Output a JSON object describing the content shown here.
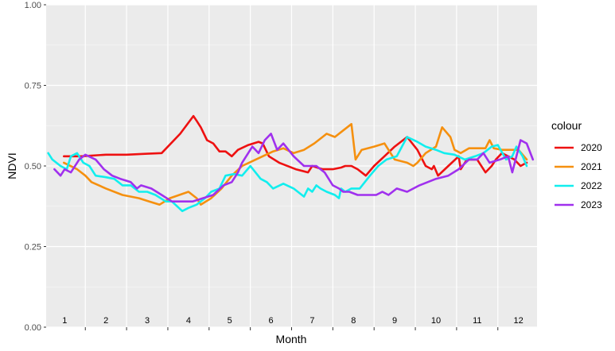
{
  "chart_data": {
    "type": "line",
    "xlabel": "Month",
    "ylabel": "NDVI",
    "ylim": [
      0,
      1
    ],
    "y_ticks": [
      "0.00",
      "0.25",
      "0.50",
      "0.75",
      "1.00"
    ],
    "y_tick_values": [
      0,
      0.25,
      0.5,
      0.75,
      1.0
    ],
    "month_labels": [
      "1",
      "2",
      "3",
      "4",
      "5",
      "6",
      "7",
      "8",
      "9",
      "10",
      "11",
      "12"
    ],
    "xlim": [
      0.55,
      12.45
    ],
    "grid": true,
    "legend": {
      "title": "colour",
      "position": "right"
    },
    "series": [
      {
        "name": "2020",
        "color": "#ee1111",
        "x": [
          0.98,
          1.4,
          2.0,
          2.5,
          3.0,
          3.35,
          3.8,
          4.12,
          4.2,
          4.3,
          4.45,
          4.6,
          4.75,
          4.9,
          5.05,
          5.2,
          5.45,
          5.7,
          5.8,
          5.95,
          6.2,
          6.6,
          6.9,
          7.0,
          7.25,
          7.5,
          7.7,
          7.8,
          7.95,
          8.1,
          8.3,
          8.5,
          8.75,
          9.0,
          9.3,
          9.55,
          9.75,
          9.9,
          9.95,
          10.05,
          10.3,
          10.55,
          10.6,
          10.75,
          11.0,
          11.2,
          11.35,
          11.45,
          11.6,
          11.75,
          11.9,
          12.05,
          12.2
        ],
        "y": [
          0.53,
          0.53,
          0.535,
          0.535,
          0.538,
          0.54,
          0.6,
          0.655,
          0.64,
          0.62,
          0.58,
          0.57,
          0.545,
          0.545,
          0.53,
          0.55,
          0.565,
          0.575,
          0.57,
          0.53,
          0.51,
          0.49,
          0.48,
          0.5,
          0.49,
          0.49,
          0.495,
          0.5,
          0.5,
          0.49,
          0.47,
          0.5,
          0.53,
          0.56,
          0.59,
          0.55,
          0.5,
          0.49,
          0.5,
          0.47,
          0.5,
          0.53,
          0.49,
          0.52,
          0.52,
          0.48,
          0.5,
          0.52,
          0.54,
          0.53,
          0.52,
          0.5,
          0.51
        ]
      },
      {
        "name": "2021",
        "color": "#f5900f",
        "x": [
          0.98,
          1.3,
          1.5,
          1.65,
          2.0,
          2.4,
          2.8,
          3.05,
          3.3,
          3.55,
          4.0,
          4.2,
          4.3,
          4.55,
          4.8,
          5.05,
          5.3,
          5.55,
          5.8,
          6.05,
          6.3,
          6.55,
          6.8,
          7.05,
          7.25,
          7.35,
          7.55,
          7.75,
          7.95,
          8.05,
          8.2,
          8.5,
          8.75,
          9.0,
          9.3,
          9.45,
          9.55,
          9.75,
          10.0,
          10.15,
          10.35,
          10.45,
          10.6,
          10.8,
          11.05,
          11.2,
          11.3,
          11.4,
          11.6,
          11.8,
          12.0,
          12.2
        ],
        "y": [
          0.51,
          0.49,
          0.47,
          0.45,
          0.43,
          0.41,
          0.4,
          0.39,
          0.38,
          0.4,
          0.42,
          0.4,
          0.38,
          0.4,
          0.43,
          0.47,
          0.5,
          0.515,
          0.53,
          0.545,
          0.555,
          0.54,
          0.55,
          0.57,
          0.59,
          0.6,
          0.59,
          0.61,
          0.63,
          0.52,
          0.55,
          0.56,
          0.57,
          0.52,
          0.51,
          0.5,
          0.51,
          0.54,
          0.56,
          0.62,
          0.59,
          0.55,
          0.54,
          0.555,
          0.555,
          0.555,
          0.58,
          0.555,
          0.55,
          0.55,
          0.55,
          0.52
        ]
      },
      {
        "name": "2022",
        "color": "#11eeee",
        "x": [
          0.6,
          0.7,
          0.9,
          1.05,
          1.15,
          1.3,
          1.45,
          1.6,
          1.75,
          2.0,
          2.2,
          2.4,
          2.6,
          2.8,
          3.0,
          3.2,
          3.45,
          3.6,
          3.85,
          4.0,
          4.2,
          4.4,
          4.55,
          4.75,
          4.9,
          5.1,
          5.3,
          5.5,
          5.75,
          5.9,
          6.05,
          6.3,
          6.55,
          6.8,
          6.9,
          7.0,
          7.1,
          7.2,
          7.35,
          7.55,
          7.65,
          7.7,
          7.8,
          7.95,
          8.15,
          8.4,
          8.6,
          8.8,
          9.05,
          9.3,
          9.55,
          9.75,
          10.0,
          10.2,
          10.45,
          10.7,
          10.95,
          11.15,
          11.35,
          11.5,
          11.7,
          11.85,
          11.95,
          12.1,
          12.2
        ],
        "y": [
          0.54,
          0.52,
          0.5,
          0.49,
          0.53,
          0.54,
          0.51,
          0.5,
          0.47,
          0.465,
          0.46,
          0.44,
          0.44,
          0.42,
          0.42,
          0.41,
          0.39,
          0.39,
          0.36,
          0.37,
          0.38,
          0.4,
          0.42,
          0.43,
          0.47,
          0.475,
          0.47,
          0.5,
          0.46,
          0.45,
          0.43,
          0.445,
          0.43,
          0.405,
          0.43,
          0.42,
          0.44,
          0.43,
          0.42,
          0.41,
          0.4,
          0.43,
          0.42,
          0.43,
          0.43,
          0.47,
          0.5,
          0.52,
          0.53,
          0.59,
          0.575,
          0.56,
          0.55,
          0.54,
          0.535,
          0.52,
          0.53,
          0.54,
          0.56,
          0.565,
          0.52,
          0.53,
          0.56,
          0.53,
          0.5
        ]
      },
      {
        "name": "2023",
        "color": "#a030ee",
        "x": [
          0.75,
          0.9,
          1.0,
          1.15,
          1.35,
          1.5,
          1.75,
          1.95,
          2.15,
          2.35,
          2.6,
          2.75,
          2.85,
          3.1,
          3.35,
          3.6,
          3.85,
          4.1,
          4.35,
          4.6,
          4.85,
          5.05,
          5.2,
          5.3,
          5.55,
          5.7,
          5.85,
          6.0,
          6.15,
          6.3,
          6.55,
          6.8,
          6.95,
          7.1,
          7.3,
          7.5,
          7.65,
          7.75,
          7.9,
          8.1,
          8.3,
          8.55,
          8.7,
          8.85,
          9.05,
          9.3,
          9.6,
          10.0,
          10.3,
          10.55,
          10.8,
          11.0,
          11.15,
          11.3,
          11.55,
          11.75,
          11.85,
          11.95,
          12.05,
          12.2,
          12.35
        ],
        "y": [
          0.49,
          0.47,
          0.49,
          0.48,
          0.52,
          0.535,
          0.52,
          0.49,
          0.47,
          0.46,
          0.45,
          0.43,
          0.44,
          0.43,
          0.41,
          0.39,
          0.39,
          0.39,
          0.4,
          0.41,
          0.44,
          0.45,
          0.48,
          0.51,
          0.56,
          0.54,
          0.58,
          0.6,
          0.55,
          0.57,
          0.53,
          0.5,
          0.5,
          0.5,
          0.48,
          0.44,
          0.43,
          0.42,
          0.42,
          0.41,
          0.41,
          0.41,
          0.42,
          0.41,
          0.43,
          0.42,
          0.44,
          0.46,
          0.47,
          0.49,
          0.52,
          0.52,
          0.54,
          0.51,
          0.52,
          0.53,
          0.48,
          0.53,
          0.58,
          0.57,
          0.52
        ]
      }
    ]
  }
}
